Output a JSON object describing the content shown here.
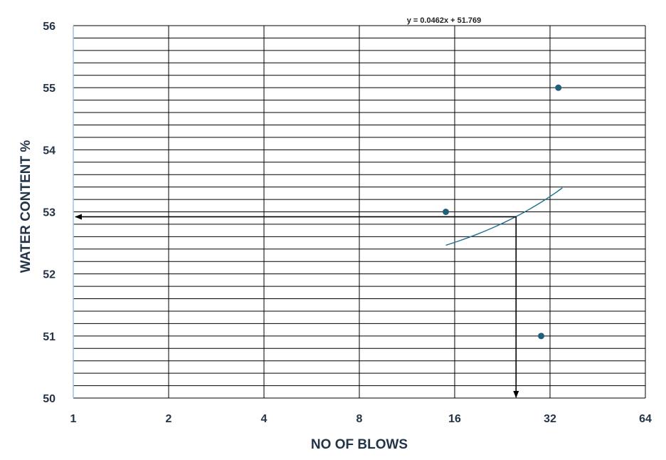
{
  "chart_data": {
    "type": "scatter",
    "title": "",
    "xlabel": "NO OF BLOWS",
    "ylabel": "WATER CONTENT %",
    "x_scale": "log2",
    "xlim": [
      1,
      64
    ],
    "ylim": [
      50,
      56
    ],
    "x_ticks": [
      1,
      2,
      4,
      8,
      16,
      32,
      64
    ],
    "y_ticks": [
      50,
      51,
      52,
      53,
      54,
      55,
      56
    ],
    "grid": true,
    "series": [
      {
        "points": [
          {
            "x": 15,
            "y": 53
          },
          {
            "x": 30,
            "y": 51
          },
          {
            "x": 34,
            "y": 55
          }
        ],
        "color": "#1f5f7a"
      }
    ],
    "trendline": {
      "equation_label": "y = 0.0462x + 51.769",
      "slope": 0.0462,
      "intercept": 51.769,
      "x_range": [
        15,
        35
      ],
      "color": "#1f6f8f"
    },
    "annotation": {
      "description": "arrows reading water content at 25 blows",
      "x": 25,
      "y": 52.92
    }
  },
  "colors": {
    "tick_text": "#243447",
    "grid": "#000000",
    "point": "#1f5f7a"
  }
}
